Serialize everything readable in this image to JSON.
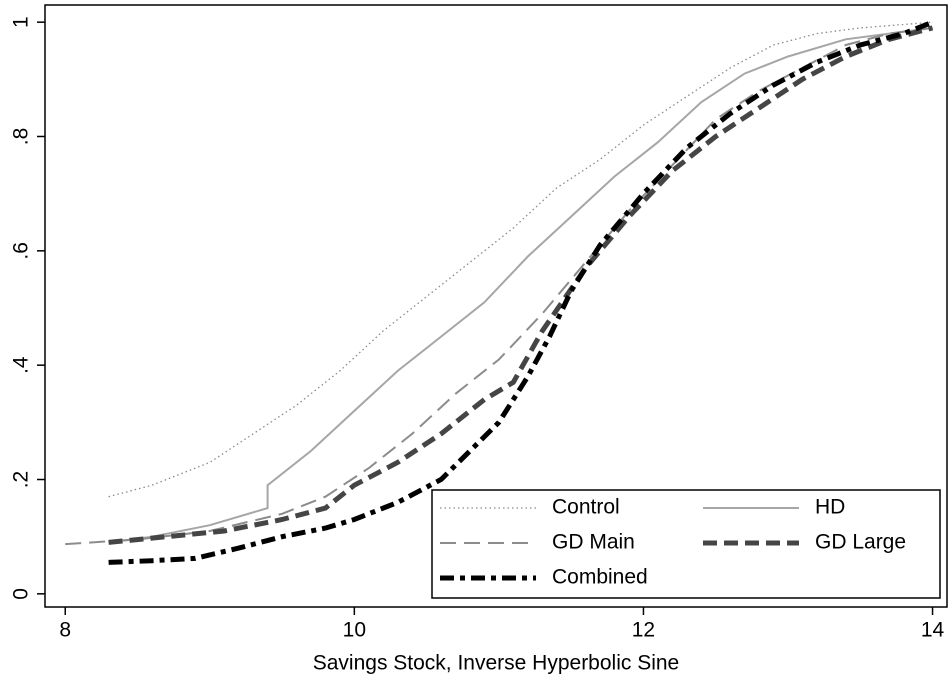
{
  "chart_data": {
    "type": "line",
    "x_label": "Savings Stock, Inverse Hyperbolic Sine",
    "xlim": [
      7.86,
      14.1
    ],
    "xticks": [
      8,
      10,
      12,
      14
    ],
    "ylim": [
      -0.023,
      1.03
    ],
    "yticks": [
      0,
      {
        "value": 0.2,
        "label": ".2"
      },
      {
        "value": 0.4,
        "label": ".4"
      },
      {
        "value": 0.6,
        "label": ".6"
      },
      {
        "value": 0.8,
        "label": ".8"
      },
      1
    ],
    "legend": "bottom-right",
    "series": [
      {
        "name": "Control",
        "color": "#8a8a8a",
        "line_style": "dotted",
        "weight": "thin",
        "x": [
          8.3,
          8.6,
          9.0,
          9.3,
          9.6,
          9.9,
          10.2,
          10.5,
          10.8,
          11.1,
          11.4,
          11.7,
          12.0,
          12.3,
          12.6,
          12.9,
          13.2,
          13.5,
          14.0
        ],
        "values": [
          0.17,
          0.19,
          0.23,
          0.28,
          0.33,
          0.39,
          0.46,
          0.52,
          0.58,
          0.64,
          0.71,
          0.76,
          0.82,
          0.87,
          0.92,
          0.96,
          0.98,
          0.99,
          1.0
        ]
      },
      {
        "name": "HD",
        "color": "#a6a6a6",
        "line_style": "solid",
        "weight": "medium",
        "x": [
          8.3,
          8.6,
          9.0,
          9.4,
          9.4,
          9.7,
          10.0,
          10.3,
          10.6,
          10.9,
          11.2,
          11.5,
          11.8,
          12.1,
          12.4,
          12.7,
          13.0,
          13.4,
          14.0
        ],
        "values": [
          0.09,
          0.1,
          0.12,
          0.15,
          0.19,
          0.25,
          0.32,
          0.39,
          0.45,
          0.51,
          0.59,
          0.66,
          0.73,
          0.79,
          0.86,
          0.91,
          0.94,
          0.97,
          0.99
        ]
      },
      {
        "name": "GD Main",
        "color": "#8c8c8c",
        "line_style": "dashed",
        "weight": "medium",
        "x": [
          8.0,
          8.5,
          9.0,
          9.5,
          9.8,
          10.1,
          10.4,
          10.7,
          11.0,
          11.3,
          11.6,
          11.9,
          12.2,
          12.5,
          12.8,
          13.1,
          13.4,
          13.7,
          14.0
        ],
        "values": [
          0.087,
          0.095,
          0.11,
          0.14,
          0.17,
          0.22,
          0.28,
          0.35,
          0.41,
          0.49,
          0.58,
          0.67,
          0.75,
          0.83,
          0.88,
          0.92,
          0.96,
          0.98,
          0.99
        ]
      },
      {
        "name": "GD Large",
        "color": "#454545",
        "line_style": "dashed",
        "weight": "thick",
        "x": [
          8.3,
          8.7,
          9.1,
          9.5,
          9.8,
          10.0,
          10.3,
          10.6,
          10.9,
          11.1,
          11.3,
          11.6,
          11.9,
          12.2,
          12.5,
          12.8,
          13.1,
          13.4,
          13.7,
          14.0
        ],
        "values": [
          0.09,
          0.1,
          0.11,
          0.13,
          0.15,
          0.19,
          0.23,
          0.28,
          0.34,
          0.37,
          0.46,
          0.57,
          0.66,
          0.74,
          0.8,
          0.85,
          0.9,
          0.94,
          0.97,
          0.99
        ]
      },
      {
        "name": "Combined",
        "color": "#000000",
        "line_style": "dash-dot",
        "weight": "thick",
        "x": [
          8.3,
          8.6,
          8.9,
          9.2,
          9.5,
          9.8,
          10.0,
          10.3,
          10.6,
          10.8,
          11.0,
          11.2,
          11.35,
          11.5,
          11.7,
          12.0,
          12.3,
          12.6,
          12.9,
          13.2,
          13.5,
          13.8,
          14.0
        ],
        "values": [
          0.055,
          0.058,
          0.062,
          0.08,
          0.1,
          0.115,
          0.13,
          0.16,
          0.2,
          0.25,
          0.3,
          0.38,
          0.45,
          0.53,
          0.61,
          0.7,
          0.78,
          0.84,
          0.89,
          0.93,
          0.96,
          0.98,
          1.0
        ]
      }
    ]
  }
}
